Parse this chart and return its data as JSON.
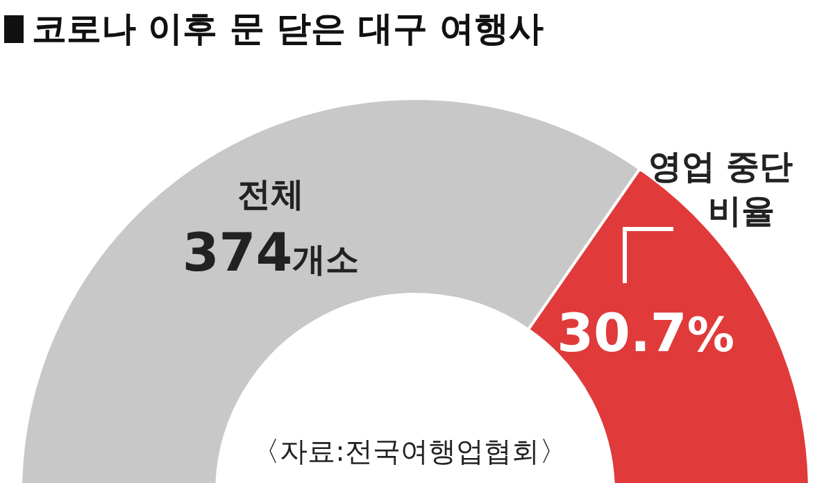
{
  "chart_data": {
    "type": "donut",
    "title": "코로나 이후 문 닫은 대구 여행사",
    "categories": [
      "전체",
      "영업 중단 비율"
    ],
    "values": [
      69.3,
      30.7
    ],
    "colors": [
      "#c8c8c8",
      "#e03a3a"
    ],
    "value_labels": [
      null,
      "30.7%"
    ],
    "annotations": [
      "374개소",
      "〈자료:전국여행업협회〉"
    ]
  }
}
